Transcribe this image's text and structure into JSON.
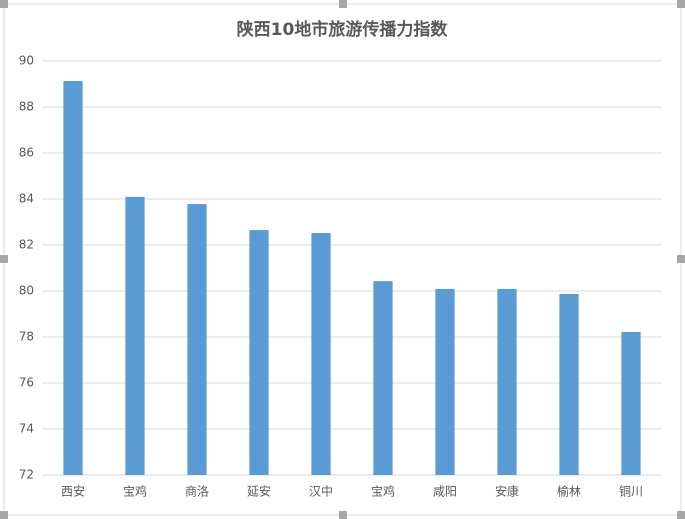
{
  "chart_data": {
    "type": "bar",
    "title": "陕西10地市旅游传播力指数",
    "categories": [
      "西安",
      "宝鸡",
      "商洛",
      "延安",
      "汉中",
      "宝鸡",
      "咸阳",
      "安康",
      "榆林",
      "铜川"
    ],
    "values": [
      89.13,
      84.09,
      83.78,
      82.65,
      82.52,
      80.43,
      80.09,
      80.09,
      79.87,
      78.22
    ],
    "color": "#5b9bd5",
    "ylim": [
      72,
      90
    ],
    "yticks": [
      72,
      74,
      76,
      78,
      80,
      82,
      84,
      86,
      88,
      90
    ],
    "grid": true
  }
}
